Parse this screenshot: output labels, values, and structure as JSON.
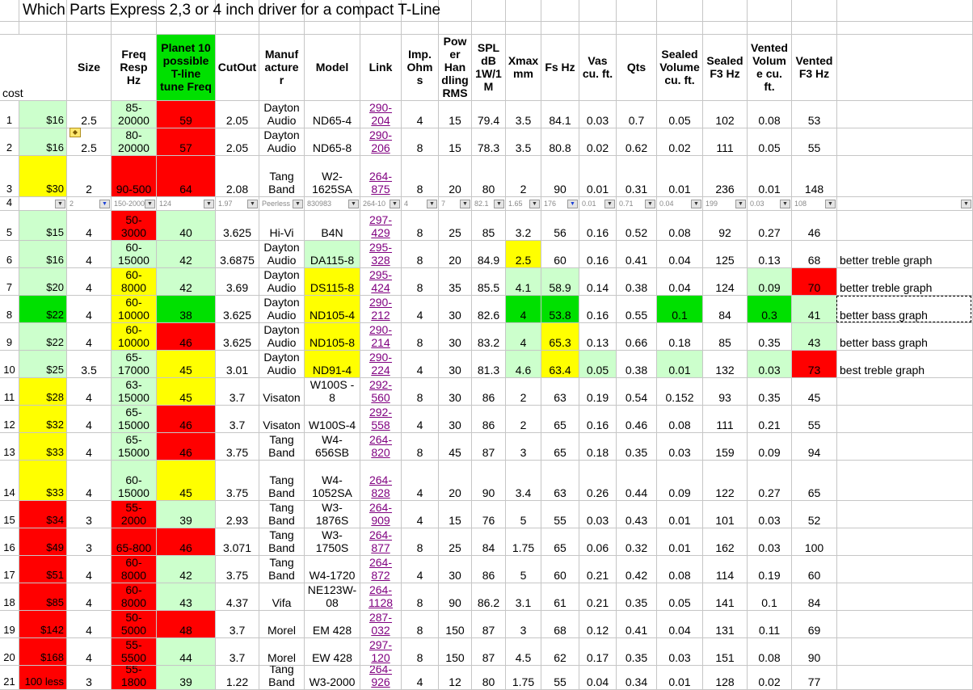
{
  "title": "Which Parts Express 2,3 or 4 inch  driver for a compact T-Line",
  "cost_label": "cost",
  "colors": {
    "green": "#00e000",
    "light": "#ccffcc",
    "yellow": "#ffff00",
    "red": "#ff0000",
    "white": "#ffffff",
    "gridline": "#c6c6c6"
  },
  "headers": [
    "",
    "Size",
    "Freq\nResp\nHz",
    "Planet 10\npossible\nT-line\ntune Freq",
    "CutOut",
    "Manuf\nacture\nr",
    "Model",
    "Link",
    "Imp.\nOhm\ns",
    "Pow\ner\nHan\ndling\nRMS",
    "SPL\ndB\n1W/1\nM",
    "Xmax\nmm",
    "Fs Hz",
    "Vas\ncu. ft.",
    "Qts",
    "Sealed\nVolume\ncu. ft.",
    "Sealed\nF3 Hz",
    "Vented\nVolum\ne cu.\nft.",
    "Vented\nF3 Hz",
    ""
  ],
  "rows": [
    {
      "num": "1",
      "cells": [
        "$16",
        "2.5",
        "85-\n20000",
        "59",
        "2.05",
        "Dayton\nAudio",
        "ND65-4",
        "290-\n204",
        "4",
        "15",
        "79.4",
        "3.5",
        "84.1",
        "0.03",
        "0.7",
        "0.05",
        "102",
        "0.08",
        "53",
        ""
      ],
      "fills": [
        "light",
        "",
        "light",
        "red",
        "",
        "",
        "",
        "",
        "",
        "",
        "",
        "",
        "",
        "",
        "",
        "",
        "",
        "",
        "",
        ""
      ]
    },
    {
      "num": "2",
      "cells": [
        "$16",
        "2.5",
        "80-\n20000",
        "57",
        "2.05",
        "Dayton\nAudio",
        "ND65-8",
        "290-\n206",
        "8",
        "15",
        "78.3",
        "3.5",
        "80.8",
        "0.02",
        "0.62",
        "0.02",
        "111",
        "0.05",
        "55",
        ""
      ],
      "fills": [
        "light",
        "",
        "light",
        "red",
        "",
        "",
        "",
        "",
        "",
        "",
        "",
        "",
        "",
        "",
        "",
        "",
        "",
        "",
        "",
        ""
      ]
    },
    {
      "num": "3",
      "cells": [
        "$30",
        "2",
        "90-500",
        "64",
        "2.08",
        "Tang\nBand",
        "W2-\n1625SA",
        "264-\n875",
        "8",
        "20",
        "80",
        "2",
        "90",
        "0.01",
        "0.31",
        "0.01",
        "236",
        "0.01",
        "148",
        ""
      ],
      "fills": [
        "yellow",
        "",
        "red",
        "red",
        "",
        "",
        "",
        "",
        "",
        "",
        "",
        "",
        "",
        "",
        "",
        "",
        "",
        "",
        "",
        ""
      ]
    },
    {
      "num": "4",
      "filter": true,
      "cells": [
        "",
        "2",
        "150-2000",
        "124",
        "1.97",
        "Peerless",
        "830983",
        "264-10",
        "4",
        "7",
        "82.1",
        "1.65",
        "176",
        "0.01",
        "0.71",
        "0.04",
        "199",
        "0.03",
        "108",
        ""
      ],
      "fills": [
        "",
        "",
        "",
        "",
        "",
        "",
        "",
        "",
        "",
        "",
        "",
        "",
        "",
        "",
        "",
        "",
        "",
        "",
        "",
        ""
      ]
    },
    {
      "num": "5",
      "cells": [
        "$15",
        "4",
        "50-\n3000",
        "40",
        "3.625",
        "Hi-Vi",
        "B4N",
        "297-\n429",
        "8",
        "25",
        "85",
        "3.2",
        "56",
        "0.16",
        "0.52",
        "0.08",
        "92",
        "0.27",
        "46",
        ""
      ],
      "fills": [
        "light",
        "",
        "red",
        "light",
        "",
        "",
        "",
        "",
        "",
        "",
        "",
        "",
        "",
        "",
        "",
        "",
        "",
        "",
        "",
        ""
      ]
    },
    {
      "num": "6",
      "cells": [
        "$16",
        "4",
        "60-\n15000",
        "42",
        "3.6875",
        "Dayton\nAudio",
        "DA115-8",
        "295-\n328",
        "8",
        "20",
        "84.9",
        "2.5",
        "60",
        "0.16",
        "0.41",
        "0.04",
        "125",
        "0.13",
        "68",
        "better treble graph"
      ],
      "fills": [
        "light",
        "",
        "light",
        "light",
        "",
        "",
        "light",
        "",
        "",
        "",
        "",
        "yellow",
        "",
        "",
        "",
        "",
        "",
        "",
        "",
        ""
      ]
    },
    {
      "num": "7",
      "cells": [
        "$20",
        "4",
        "60-\n8000",
        "42",
        "3.69",
        "Dayton\nAudio",
        "DS115-8",
        "295-\n424",
        "8",
        "35",
        "85.5",
        "4.1",
        "58.9",
        "0.14",
        "0.38",
        "0.04",
        "124",
        "0.09",
        "70",
        "better treble graph"
      ],
      "fills": [
        "light",
        "",
        "yellow",
        "light",
        "",
        "",
        "yellow",
        "",
        "",
        "",
        "",
        "light",
        "light",
        "",
        "",
        "",
        "",
        "light",
        "red",
        ""
      ]
    },
    {
      "num": "8",
      "cells": [
        "$22",
        "4",
        "60-\n10000",
        "38",
        "3.625",
        "Dayton\nAudio",
        "ND105-4",
        "290-\n212",
        "4",
        "30",
        "82.6",
        "4",
        "53.8",
        "0.16",
        "0.55",
        "0.1",
        "84",
        "0.3",
        "41",
        "better bass graph"
      ],
      "fills": [
        "green",
        "",
        "yellow",
        "green",
        "",
        "",
        "yellow",
        "",
        "",
        "",
        "",
        "green",
        "green",
        "",
        "",
        "green",
        "",
        "green",
        "light",
        ""
      ]
    },
    {
      "num": "9",
      "cells": [
        "$22",
        "4",
        "60-\n10000",
        "46",
        "3.625",
        "Dayton\nAudio",
        "ND105-8",
        "290-\n214",
        "8",
        "30",
        "83.2",
        "4",
        "65.3",
        "0.13",
        "0.66",
        "0.18",
        "85",
        "0.35",
        "43",
        "better bass graph"
      ],
      "fills": [
        "light",
        "",
        "yellow",
        "red",
        "",
        "",
        "yellow",
        "",
        "",
        "",
        "",
        "light",
        "yellow",
        "",
        "",
        "",
        "",
        "",
        "light",
        ""
      ]
    },
    {
      "num": "10",
      "cells": [
        "$25",
        "3.5",
        "65-\n17000",
        "45",
        "3.01",
        "Dayton\nAudio",
        "ND91-4",
        "290-\n224",
        "4",
        "30",
        "81.3",
        "4.6",
        "63.4",
        "0.05",
        "0.38",
        "0.01",
        "132",
        "0.03",
        "73",
        "best treble graph"
      ],
      "fills": [
        "light",
        "",
        "light",
        "yellow",
        "",
        "",
        "yellow",
        "",
        "",
        "",
        "",
        "light",
        "yellow",
        "light",
        "",
        "light",
        "",
        "light",
        "red",
        ""
      ]
    },
    {
      "num": "11",
      "cells": [
        "$28",
        "4",
        "63-\n15000",
        "45",
        "3.7",
        "Visaton",
        "W100S -\n8",
        "292-\n560",
        "8",
        "30",
        "86",
        "2",
        "63",
        "0.19",
        "0.54",
        "0.152",
        "93",
        "0.35",
        "45",
        ""
      ],
      "fills": [
        "yellow",
        "",
        "light",
        "yellow",
        "",
        "",
        "",
        "",
        "",
        "",
        "",
        "",
        "",
        "",
        "",
        "",
        "",
        "",
        "",
        ""
      ]
    },
    {
      "num": "12",
      "cells": [
        "$32",
        "4",
        "65-\n15000",
        "46",
        "3.7",
        "Visaton",
        "W100S-4",
        "292-\n558",
        "4",
        "30",
        "86",
        "2",
        "65",
        "0.16",
        "0.46",
        "0.08",
        "111",
        "0.21",
        "55",
        ""
      ],
      "fills": [
        "yellow",
        "",
        "light",
        "red",
        "",
        "",
        "",
        "",
        "",
        "",
        "",
        "",
        "",
        "",
        "",
        "",
        "",
        "",
        "",
        ""
      ]
    },
    {
      "num": "13",
      "cells": [
        "$33",
        "4",
        "65-\n15000",
        "46",
        "3.75",
        "Tang\nBand",
        "W4-\n656SB",
        "264-\n820",
        "8",
        "45",
        "87",
        "3",
        "65",
        "0.18",
        "0.35",
        "0.03",
        "159",
        "0.09",
        "94",
        ""
      ],
      "fills": [
        "yellow",
        "",
        "light",
        "red",
        "",
        "",
        "",
        "",
        "",
        "",
        "",
        "",
        "",
        "",
        "",
        "",
        "",
        "",
        "",
        ""
      ]
    },
    {
      "num": "14",
      "cells": [
        "$33",
        "4",
        "60-\n15000",
        "45",
        "3.75",
        "Tang\nBand",
        "W4-\n1052SA",
        "264-\n828",
        "4",
        "20",
        "90",
        "3.4",
        "63",
        "0.26",
        "0.44",
        "0.09",
        "122",
        "0.27",
        "65",
        ""
      ],
      "fills": [
        "yellow",
        "",
        "light",
        "yellow",
        "",
        "",
        "",
        "",
        "",
        "",
        "",
        "",
        "",
        "",
        "",
        "",
        "",
        "",
        "",
        ""
      ]
    },
    {
      "num": "15",
      "cells": [
        "$34",
        "3",
        "55-\n2000",
        "39",
        "2.93",
        "Tang\nBand",
        "W3-\n1876S",
        "264-\n909",
        "4",
        "15",
        "76",
        "5",
        "55",
        "0.03",
        "0.43",
        "0.01",
        "101",
        "0.03",
        "52",
        ""
      ],
      "fills": [
        "red",
        "",
        "red",
        "light",
        "",
        "",
        "",
        "",
        "",
        "",
        "",
        "",
        "",
        "",
        "",
        "",
        "",
        "",
        "",
        ""
      ]
    },
    {
      "num": "16",
      "cells": [
        "$49",
        "3",
        "65-800",
        "46",
        "3.071",
        "Tang\nBand",
        "W3-\n1750S",
        "264-\n877",
        "8",
        "25",
        "84",
        "1.75",
        "65",
        "0.06",
        "0.32",
        "0.01",
        "162",
        "0.03",
        "100",
        ""
      ],
      "fills": [
        "red",
        "",
        "red",
        "red",
        "",
        "",
        "",
        "",
        "",
        "",
        "",
        "",
        "",
        "",
        "",
        "",
        "",
        "",
        "",
        ""
      ]
    },
    {
      "num": "17",
      "cells": [
        "$51",
        "4",
        "60-\n8000",
        "42",
        "3.75",
        "Tang\nBand",
        "W4-1720",
        "264-\n872",
        "4",
        "30",
        "86",
        "5",
        "60",
        "0.21",
        "0.42",
        "0.08",
        "114",
        "0.19",
        "60",
        ""
      ],
      "fills": [
        "red",
        "",
        "red",
        "light",
        "",
        "",
        "",
        "",
        "",
        "",
        "",
        "",
        "",
        "",
        "",
        "",
        "",
        "",
        "",
        ""
      ]
    },
    {
      "num": "18",
      "cells": [
        "$85",
        "4",
        "60-\n8000",
        "43",
        "4.37",
        "Vifa",
        "NE123W-\n08",
        "264-\n1128",
        "8",
        "90",
        "86.2",
        "3.1",
        "61",
        "0.21",
        "0.35",
        "0.05",
        "141",
        "0.1",
        "84",
        ""
      ],
      "fills": [
        "red",
        "",
        "red",
        "light",
        "",
        "",
        "",
        "",
        "",
        "",
        "",
        "",
        "",
        "",
        "",
        "",
        "",
        "",
        "",
        ""
      ]
    },
    {
      "num": "19",
      "cells": [
        "$142",
        "4",
        "50-\n5000",
        "48",
        "3.7",
        "Morel",
        "EM 428",
        "287-\n032",
        "8",
        "150",
        "87",
        "3",
        "68",
        "0.12",
        "0.41",
        "0.04",
        "131",
        "0.11",
        "69",
        ""
      ],
      "fills": [
        "red",
        "",
        "red",
        "red",
        "",
        "",
        "",
        "",
        "",
        "",
        "",
        "",
        "",
        "",
        "",
        "",
        "",
        "",
        "",
        ""
      ]
    },
    {
      "num": "20",
      "cells": [
        "$168",
        "4",
        "55-\n5500",
        "44",
        "3.7",
        "Morel",
        "EW 428",
        "297-\n120",
        "8",
        "150",
        "87",
        "4.5",
        "62",
        "0.17",
        "0.35",
        "0.03",
        "151",
        "0.08",
        "90",
        ""
      ],
      "fills": [
        "red",
        "",
        "red",
        "light",
        "",
        "",
        "",
        "",
        "",
        "",
        "",
        "",
        "",
        "",
        "",
        "",
        "",
        "",
        "",
        ""
      ]
    },
    {
      "num": "21",
      "cells": [
        "100 less",
        "3",
        "55-\n1800",
        "39",
        "1.22",
        "Tang\nBand",
        "W3-2000",
        "264-\n926",
        "4",
        "12",
        "80",
        "1.75",
        "55",
        "0.04",
        "0.34",
        "0.01",
        "128",
        "0.02",
        "77",
        ""
      ],
      "fills": [
        "red",
        "",
        "red",
        "light",
        "",
        "",
        "",
        "",
        "",
        "",
        "",
        "",
        "",
        "",
        "",
        "",
        "",
        "",
        "",
        ""
      ]
    }
  ]
}
